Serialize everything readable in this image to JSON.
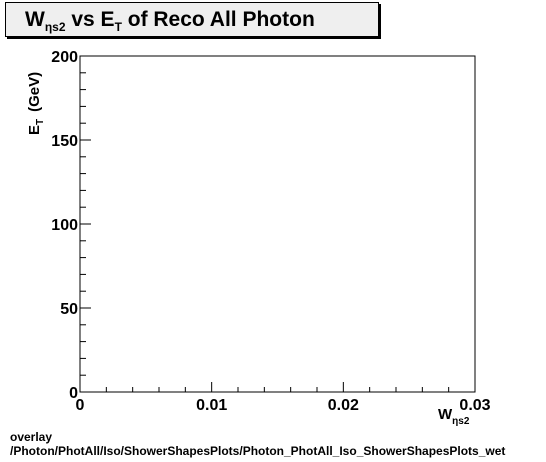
{
  "title": {
    "w_main": "W",
    "w_sub": "ηs2",
    "middle": " vs E",
    "e_sub": "T",
    "rest": " of Reco All Photon"
  },
  "chart_data": {
    "type": "scatter",
    "title": "Wηs2 vs ET of Reco All Photon",
    "xlabel": "Wηs2",
    "ylabel": "ET (GeV)",
    "xlim": [
      0,
      0.03
    ],
    "ylim": [
      0,
      200
    ],
    "x_ticks": [
      0,
      0.01,
      0.02,
      0.03
    ],
    "x_tick_labels": [
      "0",
      "0.01",
      "0.02",
      "0.03"
    ],
    "y_ticks": [
      0,
      50,
      100,
      150,
      200
    ],
    "y_tick_labels": [
      "0",
      "50",
      "100",
      "150",
      "200"
    ],
    "x_minor_per_major": 5,
    "y_minor_per_major": 5,
    "grid": false,
    "points": []
  },
  "axis_labels": {
    "x_main": "W",
    "x_sub": "ηs2",
    "y_main": "E",
    "y_sub": "T",
    "y_unit": "(GeV)"
  },
  "footer": {
    "line1": "overlay",
    "line2": "/Photon/PhotAll/Iso/ShowerShapesPlots/Photon_PhotAll_Iso_ShowerShapesPlots_wet"
  }
}
